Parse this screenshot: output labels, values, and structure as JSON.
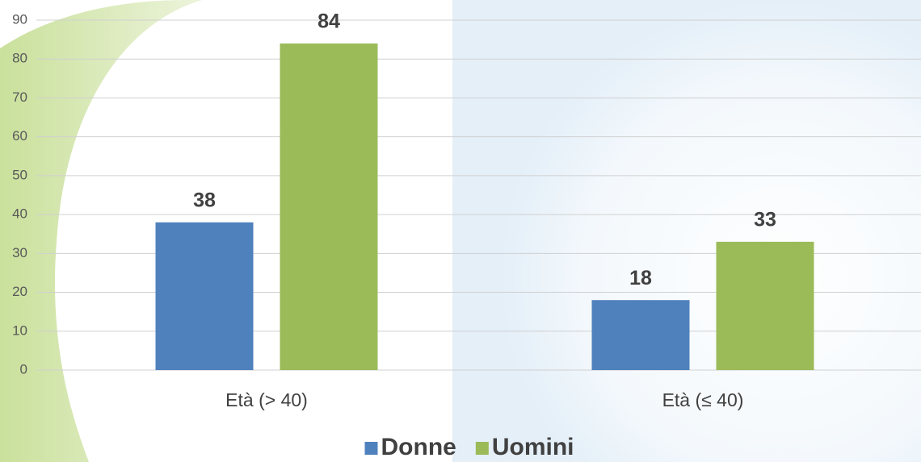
{
  "chart_data": {
    "type": "bar",
    "categories": [
      "Età (> 40)",
      "Età (≤ 40)"
    ],
    "series": [
      {
        "name": "Donne",
        "color": "#4f81bd",
        "values": [
          38,
          18
        ]
      },
      {
        "name": "Uomini",
        "color": "#9bbb59",
        "values": [
          84,
          33
        ]
      }
    ],
    "ylim": [
      0,
      90
    ],
    "yticks": [
      0,
      10,
      20,
      30,
      40,
      50,
      60,
      70,
      80,
      90
    ],
    "grid": true,
    "legend": "bottom",
    "value_labels_shown": true
  }
}
